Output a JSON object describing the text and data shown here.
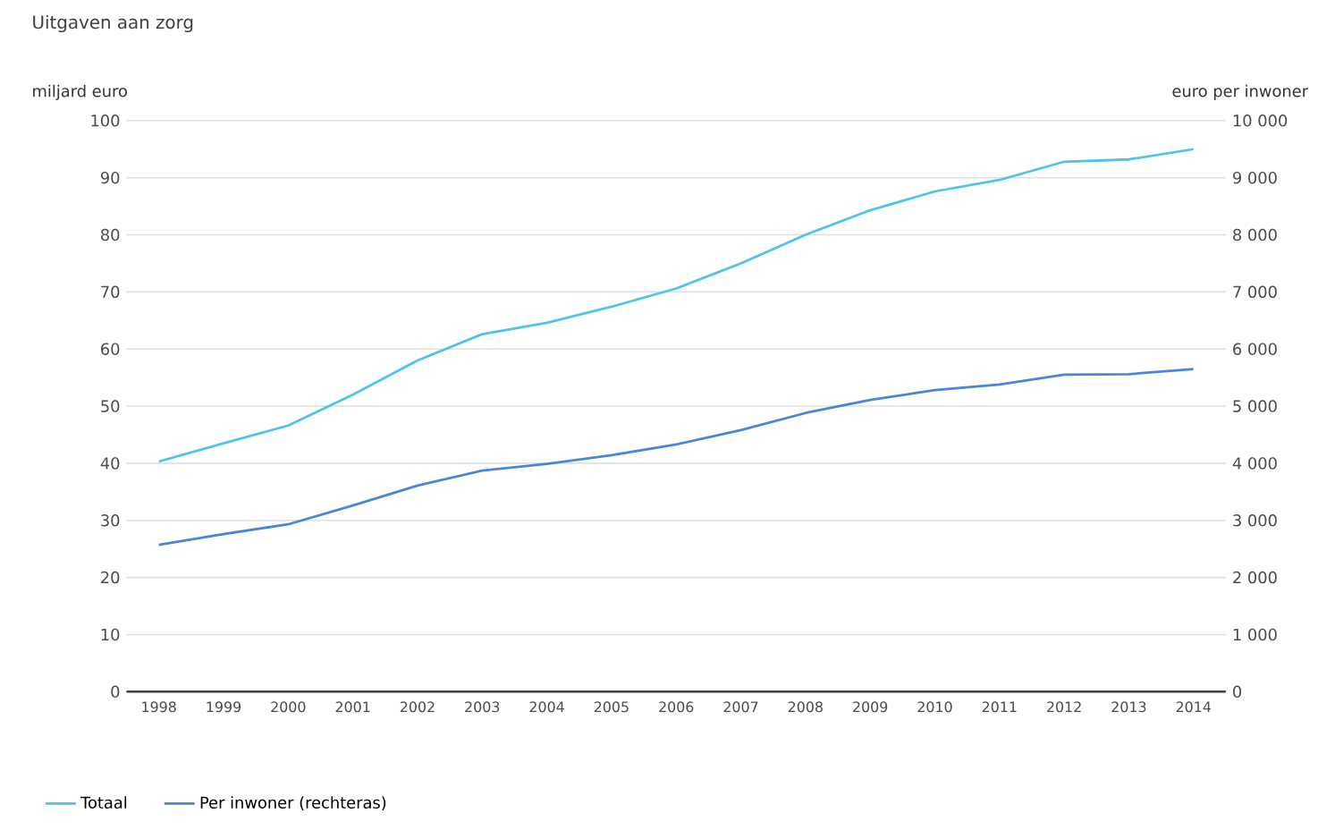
{
  "chart_data": {
    "type": "line",
    "title": "Uitgaven aan zorg",
    "ylabel": "miljard euro",
    "y2label": "euro per inwoner",
    "categories": [
      "1998",
      "1999",
      "2000",
      "2001",
      "2002",
      "2003",
      "2004",
      "2005",
      "2006",
      "2007",
      "2008",
      "2009",
      "2010",
      "2011",
      "2012",
      "2013",
      "2014"
    ],
    "series": [
      {
        "name": "Totaal",
        "color": "#4fc3e8",
        "values": [
          40.3,
          43.5,
          46.6,
          52,
          58,
          62.6,
          64.6,
          67.4,
          70.6,
          75,
          80,
          84.3,
          87.6,
          89.6,
          92.8,
          93.2,
          95
        ]
      },
      {
        "name": "Per inwoner (rechteras)",
        "color": "#4a86d8",
        "axis": "y2",
        "values": [
          2570,
          2760,
          2930,
          3260,
          3610,
          3870,
          3990,
          4140,
          4330,
          4580,
          4880,
          5110,
          5280,
          5380,
          5550,
          5560,
          5650
        ]
      }
    ],
    "ylim": [
      0,
      100
    ],
    "yticks": [
      0,
      10,
      20,
      30,
      40,
      50,
      60,
      70,
      80,
      90,
      100
    ],
    "y2lim": [
      0,
      10000
    ],
    "y2ticks": [
      0,
      {
        "value": 1000,
        "label": "1 000"
      },
      {
        "value": 2000,
        "label": "2 000"
      },
      {
        "value": 3000,
        "label": "3 000"
      },
      {
        "value": 4000,
        "label": "4 000"
      },
      {
        "value": 5000,
        "label": "5 000"
      },
      {
        "value": 6000,
        "label": "6 000"
      },
      {
        "value": 7000,
        "label": "7 000"
      },
      {
        "value": 8000,
        "label": "8 000"
      },
      {
        "value": 9000,
        "label": "9 000"
      },
      {
        "value": 10000,
        "label": "10 000"
      }
    ],
    "grid": "y",
    "legend": "bottom left",
    "marker": "none",
    "line_style": "solid"
  }
}
